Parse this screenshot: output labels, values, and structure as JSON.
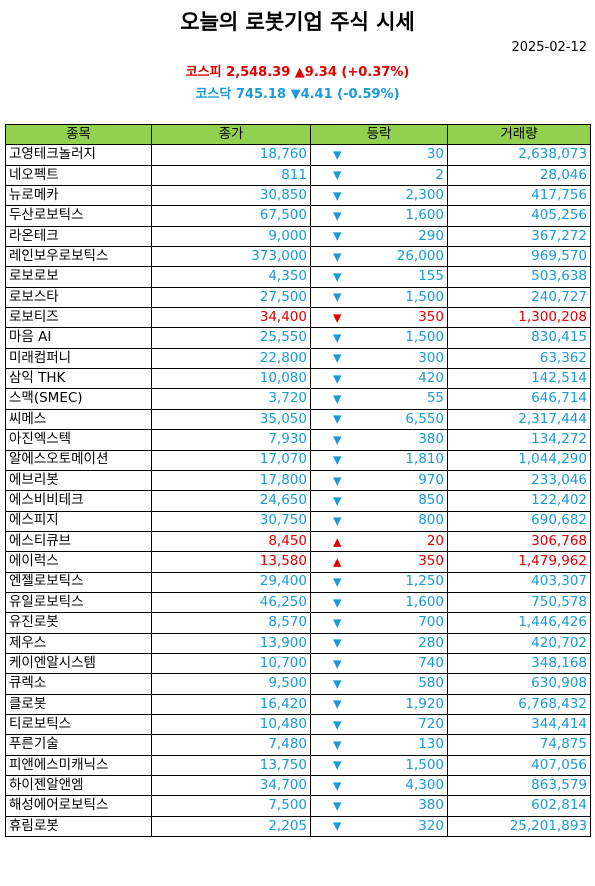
{
  "title": "오늘의 로봇기업 주식 시세",
  "date": "2025-02-12",
  "indices": [
    {
      "name": "코스피",
      "value": "2,548.39",
      "arrow": "▲",
      "change": "9.34",
      "pct": "(+0.37%)",
      "dir": "up"
    },
    {
      "name": "코스닥",
      "value": "745.18",
      "arrow": "▼",
      "change": "4.41",
      "pct": "(-0.59%)",
      "dir": "down"
    }
  ],
  "columns": [
    "종목",
    "종가",
    "등락",
    "거래량"
  ],
  "colors": {
    "up": "#e00000",
    "down": "#1a9ad6",
    "header_bg": "#92d050"
  },
  "rows": [
    {
      "name": "고영테크놀러지",
      "price": "18,760",
      "dir": "down",
      "change": "30",
      "volume": "2,638,073"
    },
    {
      "name": "네오펙트",
      "price": "811",
      "dir": "down",
      "change": "2",
      "volume": "28,046"
    },
    {
      "name": "뉴로메카",
      "price": "30,850",
      "dir": "down",
      "change": "2,300",
      "volume": "417,756"
    },
    {
      "name": "두산로보틱스",
      "price": "67,500",
      "dir": "down",
      "change": "1,600",
      "volume": "405,256"
    },
    {
      "name": "라온테크",
      "price": "9,000",
      "dir": "down",
      "change": "290",
      "volume": "367,272"
    },
    {
      "name": "레인보우로보틱스",
      "price": "373,000",
      "dir": "down",
      "change": "26,000",
      "volume": "969,570"
    },
    {
      "name": "로보로보",
      "price": "4,350",
      "dir": "down",
      "change": "155",
      "volume": "503,638"
    },
    {
      "name": "로보스타",
      "price": "27,500",
      "dir": "down",
      "change": "1,500",
      "volume": "240,727"
    },
    {
      "name": "로보티즈",
      "price": "34,400",
      "dir": "up_red_down",
      "change": "350",
      "volume": "1,300,208"
    },
    {
      "name": "마음 AI",
      "price": "25,550",
      "dir": "down",
      "change": "1,500",
      "volume": "830,415"
    },
    {
      "name": "미래컴퍼니",
      "price": "22,800",
      "dir": "down",
      "change": "300",
      "volume": "63,362"
    },
    {
      "name": "삼익 THK",
      "price": "10,080",
      "dir": "down",
      "change": "420",
      "volume": "142,514"
    },
    {
      "name": "스맥(SMEC)",
      "price": "3,720",
      "dir": "down",
      "change": "55",
      "volume": "646,714"
    },
    {
      "name": "씨메스",
      "price": "35,050",
      "dir": "down",
      "change": "6,550",
      "volume": "2,317,444"
    },
    {
      "name": "아진엑스텍",
      "price": "7,930",
      "dir": "down",
      "change": "380",
      "volume": "134,272"
    },
    {
      "name": "알에스오토메이션",
      "price": "17,070",
      "dir": "down",
      "change": "1,810",
      "volume": "1,044,290"
    },
    {
      "name": "에브리봇",
      "price": "17,800",
      "dir": "down",
      "change": "970",
      "volume": "233,046"
    },
    {
      "name": "에스비비테크",
      "price": "24,650",
      "dir": "down",
      "change": "850",
      "volume": "122,402"
    },
    {
      "name": "에스피지",
      "price": "30,750",
      "dir": "down",
      "change": "800",
      "volume": "690,682"
    },
    {
      "name": "에스티큐브",
      "price": "8,450",
      "dir": "up",
      "change": "20",
      "volume": "306,768"
    },
    {
      "name": "에이럭스",
      "price": "13,580",
      "dir": "up",
      "change": "350",
      "volume": "1,479,962"
    },
    {
      "name": "엔젤로보틱스",
      "price": "29,400",
      "dir": "down",
      "change": "1,250",
      "volume": "403,307"
    },
    {
      "name": "유일로보틱스",
      "price": "46,250",
      "dir": "down",
      "change": "1,600",
      "volume": "750,578"
    },
    {
      "name": "유진로봇",
      "price": "8,570",
      "dir": "down",
      "change": "700",
      "volume": "1,446,426"
    },
    {
      "name": "제우스",
      "price": "13,900",
      "dir": "down",
      "change": "280",
      "volume": "420,702"
    },
    {
      "name": "케이엔알시스템",
      "price": "10,700",
      "dir": "down",
      "change": "740",
      "volume": "348,168"
    },
    {
      "name": "큐렉소",
      "price": "9,500",
      "dir": "down",
      "change": "580",
      "volume": "630,908"
    },
    {
      "name": "클로봇",
      "price": "16,420",
      "dir": "down",
      "change": "1,920",
      "volume": "6,768,432"
    },
    {
      "name": "티로보틱스",
      "price": "10,480",
      "dir": "down",
      "change": "720",
      "volume": "344,414"
    },
    {
      "name": "푸른기술",
      "price": "7,480",
      "dir": "down",
      "change": "130",
      "volume": "74,875"
    },
    {
      "name": "피앤에스미캐닉스",
      "price": "13,750",
      "dir": "down",
      "change": "1,500",
      "volume": "407,056"
    },
    {
      "name": "하이젠알앤엠",
      "price": "34,700",
      "dir": "down",
      "change": "4,300",
      "volume": "863,579"
    },
    {
      "name": "해성에어로보틱스",
      "price": "7,500",
      "dir": "down",
      "change": "380",
      "volume": "602,814"
    },
    {
      "name": "휴림로봇",
      "price": "2,205",
      "dir": "down",
      "change": "320",
      "volume": "25,201,893"
    }
  ]
}
